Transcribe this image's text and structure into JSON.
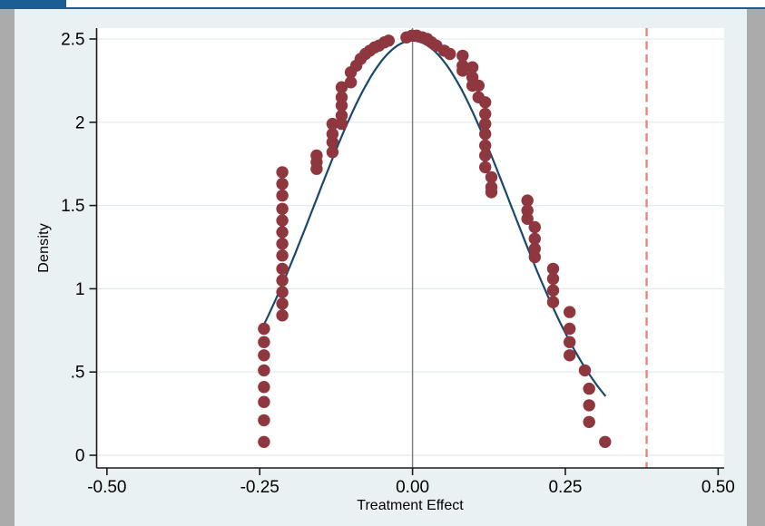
{
  "window": {
    "tab_color": "#1a5e94",
    "top_bar_background": "#ffffff",
    "side_strip_color": "#ababab",
    "figure_background": "#eaf1f3"
  },
  "chart_data": {
    "type": "scatter",
    "title": "",
    "xlabel": "Treatment Effect",
    "ylabel": "Density",
    "xlim": [
      -0.52,
      0.51
    ],
    "ylim": [
      0,
      2.64
    ],
    "grid": "horizontal",
    "legend": "none",
    "plot_background": "#ffffff",
    "gridline_color": "#e0eaf1",
    "axis_color": "#1a1a1a",
    "tick_label_color": "#000000",
    "x_ticks": [
      {
        "value": -0.5,
        "label": "-0.50"
      },
      {
        "value": -0.25,
        "label": "-0.25"
      },
      {
        "value": 0.0,
        "label": "0.00"
      },
      {
        "value": 0.25,
        "label": "0.25"
      },
      {
        "value": 0.5,
        "label": "0.50"
      }
    ],
    "y_ticks": [
      {
        "value": 0,
        "label": "0"
      },
      {
        "value": 0.5,
        "label": ".5"
      },
      {
        "value": 1,
        "label": "1"
      },
      {
        "value": 1.5,
        "label": "1.5"
      },
      {
        "value": 2,
        "label": "2"
      },
      {
        "value": 2.5,
        "label": "2.5"
      }
    ],
    "series": [
      {
        "name": "permutation-density-dots",
        "type": "scatter",
        "marker": "circle",
        "color": "#8f373e",
        "points": [
          [
            -0.243,
            0.08
          ],
          [
            -0.243,
            0.21
          ],
          [
            -0.243,
            0.32
          ],
          [
            -0.243,
            0.41
          ],
          [
            -0.243,
            0.51
          ],
          [
            -0.243,
            0.6
          ],
          [
            -0.243,
            0.68
          ],
          [
            -0.243,
            0.76
          ],
          [
            -0.213,
            0.84
          ],
          [
            -0.213,
            0.91
          ],
          [
            -0.213,
            0.98
          ],
          [
            -0.213,
            1.05
          ],
          [
            -0.213,
            1.12
          ],
          [
            -0.213,
            1.2
          ],
          [
            -0.213,
            1.27
          ],
          [
            -0.213,
            1.34
          ],
          [
            -0.213,
            1.41
          ],
          [
            -0.213,
            1.48
          ],
          [
            -0.213,
            1.56
          ],
          [
            -0.213,
            1.63
          ],
          [
            -0.213,
            1.7
          ],
          [
            -0.157,
            1.72
          ],
          [
            -0.157,
            1.76
          ],
          [
            -0.157,
            1.8
          ],
          [
            -0.131,
            1.82
          ],
          [
            -0.131,
            1.88
          ],
          [
            -0.131,
            1.93
          ],
          [
            -0.131,
            1.99
          ],
          [
            -0.116,
            1.99
          ],
          [
            -0.116,
            2.04
          ],
          [
            -0.116,
            2.1
          ],
          [
            -0.116,
            2.15
          ],
          [
            -0.116,
            2.21
          ],
          [
            -0.101,
            2.24
          ],
          [
            -0.101,
            2.3
          ],
          [
            -0.092,
            2.34
          ],
          [
            -0.085,
            2.38
          ],
          [
            -0.077,
            2.41
          ],
          [
            -0.07,
            2.43
          ],
          [
            -0.062,
            2.45
          ],
          [
            -0.055,
            2.46
          ],
          [
            -0.046,
            2.48
          ],
          [
            -0.039,
            2.49
          ],
          [
            -0.01,
            2.51
          ],
          [
            -0.001,
            2.52
          ],
          [
            0.007,
            2.52
          ],
          [
            0.016,
            2.51
          ],
          [
            0.024,
            2.5
          ],
          [
            0.031,
            2.48
          ],
          [
            0.039,
            2.46
          ],
          [
            0.052,
            2.43
          ],
          [
            0.061,
            2.41
          ],
          [
            0.082,
            2.4
          ],
          [
            0.082,
            2.34
          ],
          [
            0.082,
            2.31
          ],
          [
            0.098,
            2.33
          ],
          [
            0.098,
            2.27
          ],
          [
            0.098,
            2.22
          ],
          [
            0.108,
            2.22
          ],
          [
            0.108,
            2.15
          ],
          [
            0.119,
            2.12
          ],
          [
            0.119,
            2.05
          ],
          [
            0.119,
            1.99
          ],
          [
            0.119,
            1.93
          ],
          [
            0.119,
            1.86
          ],
          [
            0.119,
            1.8
          ],
          [
            0.119,
            1.73
          ],
          [
            0.129,
            1.67
          ],
          [
            0.129,
            1.61
          ],
          [
            0.129,
            1.58
          ],
          [
            0.188,
            1.53
          ],
          [
            0.188,
            1.47
          ],
          [
            0.188,
            1.42
          ],
          [
            0.2,
            1.37
          ],
          [
            0.2,
            1.3
          ],
          [
            0.2,
            1.24
          ],
          [
            0.2,
            1.19
          ],
          [
            0.23,
            1.12
          ],
          [
            0.23,
            1.06
          ],
          [
            0.23,
            0.99
          ],
          [
            0.23,
            0.92
          ],
          [
            0.257,
            0.86
          ],
          [
            0.257,
            0.76
          ],
          [
            0.257,
            0.68
          ],
          [
            0.257,
            0.6
          ],
          [
            0.282,
            0.51
          ],
          [
            0.289,
            0.4
          ],
          [
            0.289,
            0.3
          ],
          [
            0.289,
            0.2
          ],
          [
            0.315,
            0.08
          ]
        ]
      },
      {
        "name": "normal-density-curve",
        "type": "line",
        "color": "#1a476f",
        "curve": {
          "shape": "normal",
          "mean": 0.0,
          "sd": 0.16,
          "peak_density": 2.49,
          "x_start": -0.242,
          "x_end": 0.315
        }
      },
      {
        "name": "zero-reference-line",
        "type": "vline",
        "x": 0.0,
        "color": "#7a7a7a",
        "style": "solid"
      },
      {
        "name": "observed-effect-line",
        "type": "vline",
        "x": 0.383,
        "color": "#f2827a",
        "style": "dashed"
      }
    ]
  }
}
